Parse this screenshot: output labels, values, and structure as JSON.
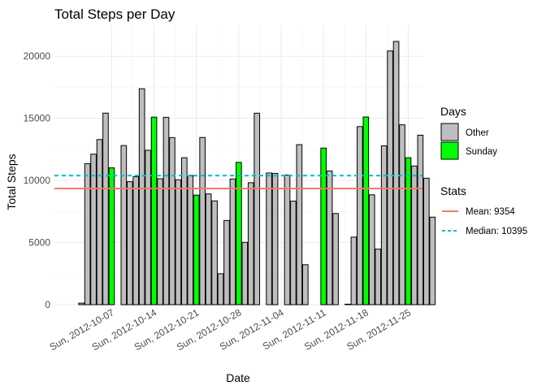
{
  "chart_data": {
    "type": "bar",
    "title": "Total Steps per Day",
    "xlabel": "Date",
    "ylabel": "Total Steps",
    "ylim": [
      0,
      22500
    ],
    "y_ticks": [
      0,
      5000,
      10000,
      15000,
      20000
    ],
    "x_ticks": [
      "Sun, 2012-10-07",
      "Sun, 2012-10-14",
      "Sun, 2012-10-21",
      "Sun, 2012-10-28",
      "Sun, 2012-11-04",
      "Sun, 2012-11-11",
      "Sun, 2012-11-18",
      "Sun, 2012-11-25"
    ],
    "x_start_date": "2012-10-01",
    "grid": true,
    "legend_position": "right",
    "series": [
      {
        "name": "Other",
        "color": "#bebebe"
      },
      {
        "name": "Sunday",
        "color": "#00ff00"
      }
    ],
    "categories": [
      "2012-10-01",
      "2012-10-02",
      "2012-10-03",
      "2012-10-04",
      "2012-10-05",
      "2012-10-06",
      "2012-10-07",
      "2012-10-08",
      "2012-10-09",
      "2012-10-10",
      "2012-10-11",
      "2012-10-12",
      "2012-10-13",
      "2012-10-14",
      "2012-10-15",
      "2012-10-16",
      "2012-10-17",
      "2012-10-18",
      "2012-10-19",
      "2012-10-20",
      "2012-10-21",
      "2012-10-22",
      "2012-10-23",
      "2012-10-24",
      "2012-10-25",
      "2012-10-26",
      "2012-10-27",
      "2012-10-28",
      "2012-10-29",
      "2012-10-30",
      "2012-10-31",
      "2012-11-01",
      "2012-11-02",
      "2012-11-03",
      "2012-11-04",
      "2012-11-05",
      "2012-11-06",
      "2012-11-07",
      "2012-11-08",
      "2012-11-09",
      "2012-11-10",
      "2012-11-11",
      "2012-11-12",
      "2012-11-13",
      "2012-11-14",
      "2012-11-15",
      "2012-11-16",
      "2012-11-17",
      "2012-11-18",
      "2012-11-19",
      "2012-11-20",
      "2012-11-21",
      "2012-11-22",
      "2012-11-23",
      "2012-11-24",
      "2012-11-25",
      "2012-11-26",
      "2012-11-27",
      "2012-11-28",
      "2012-11-29",
      "2012-11-30"
    ],
    "values": [
      0,
      126,
      11352,
      12116,
      13294,
      15420,
      11015,
      0,
      12811,
      9900,
      10304,
      17382,
      12426,
      15098,
      10139,
      15084,
      13452,
      10056,
      11829,
      10395,
      8821,
      13460,
      8918,
      8355,
      2492,
      6778,
      10119,
      11458,
      5018,
      9819,
      15414,
      0,
      10600,
      10571,
      0,
      10439,
      8334,
      12883,
      3219,
      0,
      0,
      12608,
      10765,
      7336,
      0,
      41,
      5441,
      14339,
      15110,
      8841,
      4472,
      12787,
      20427,
      21194,
      14478,
      11834,
      11162,
      13646,
      10183,
      7047,
      0
    ],
    "day_groups": [
      "Other",
      "Other",
      "Other",
      "Other",
      "Other",
      "Other",
      "Sunday",
      "Other",
      "Other",
      "Other",
      "Other",
      "Other",
      "Other",
      "Sunday",
      "Other",
      "Other",
      "Other",
      "Other",
      "Other",
      "Other",
      "Sunday",
      "Other",
      "Other",
      "Other",
      "Other",
      "Other",
      "Other",
      "Sunday",
      "Other",
      "Other",
      "Other",
      "Other",
      "Other",
      "Other",
      "Sunday",
      "Other",
      "Other",
      "Other",
      "Other",
      "Other",
      "Other",
      "Sunday",
      "Other",
      "Other",
      "Other",
      "Other",
      "Other",
      "Other",
      "Sunday",
      "Other",
      "Other",
      "Other",
      "Other",
      "Other",
      "Other",
      "Sunday",
      "Other",
      "Other",
      "Other",
      "Other",
      "Other"
    ],
    "reference_lines": [
      {
        "name": "Mean",
        "value": 9354,
        "color": "#f8766d",
        "dash": "solid"
      },
      {
        "name": "Median",
        "value": 10395,
        "color": "#00bfc4",
        "dash": "dashed"
      }
    ]
  },
  "legend": {
    "days_title": "Days",
    "days_items": [
      "Other",
      "Sunday"
    ],
    "stats_title": "Stats",
    "stats_items": [
      "Mean:  9354",
      "Median:  10395"
    ]
  }
}
